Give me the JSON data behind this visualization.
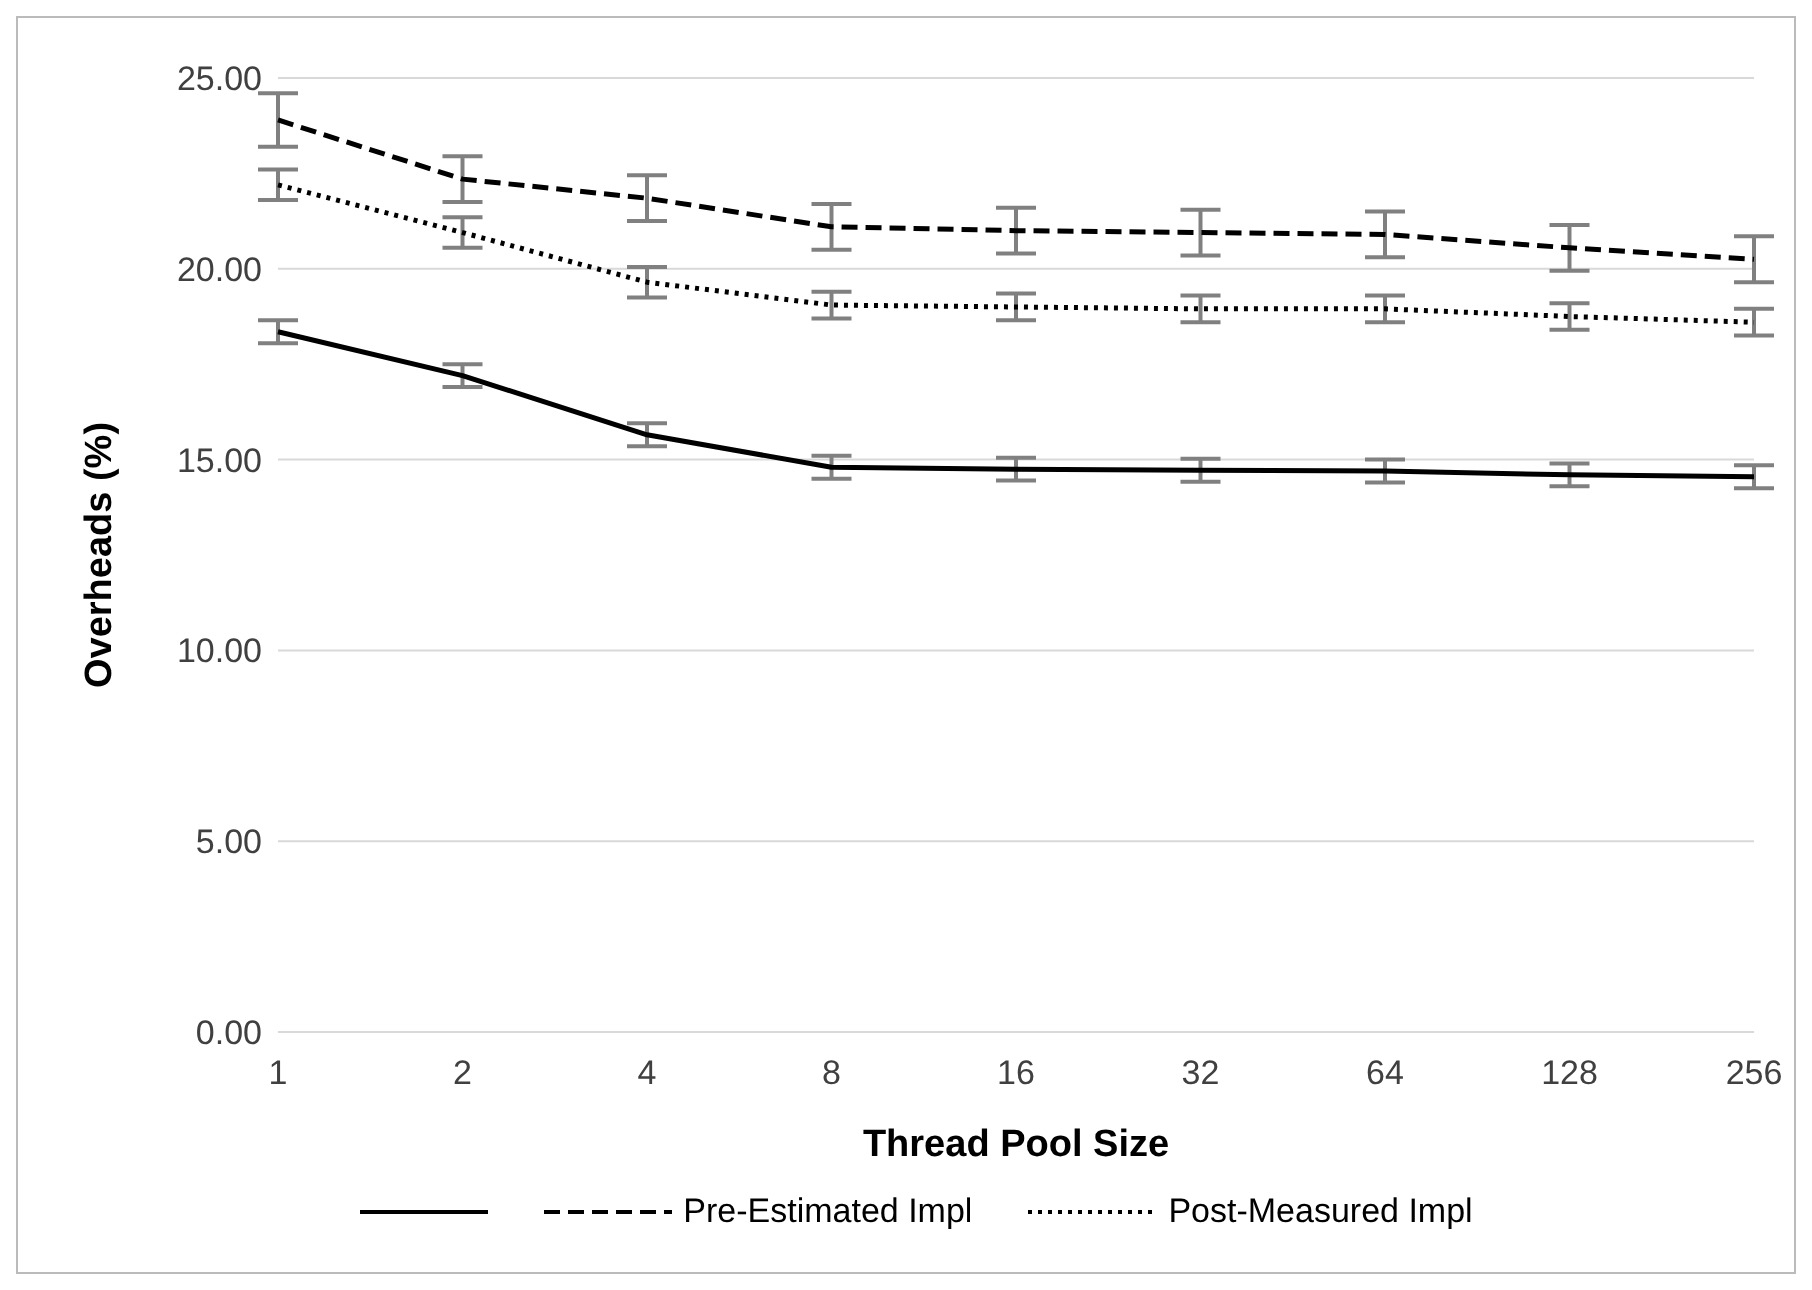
{
  "chart_data": {
    "type": "line",
    "xlabel": "Thread Pool Size",
    "ylabel": "Overheads (%)",
    "categories": [
      "1",
      "2",
      "4",
      "8",
      "16",
      "32",
      "64",
      "128",
      "256"
    ],
    "ylim": [
      0,
      25
    ],
    "yticks": [
      {
        "value": 0,
        "label": "0.00"
      },
      {
        "value": 5,
        "label": "5.00"
      },
      {
        "value": 10,
        "label": "10.00"
      },
      {
        "value": 15,
        "label": "15.00"
      },
      {
        "value": 20,
        "label": "20.00"
      },
      {
        "value": 25,
        "label": "25.00"
      }
    ],
    "grid": "y",
    "legend": "bottom",
    "marker": "none",
    "series": [
      {
        "color": "#000000",
        "line_style": "solid",
        "values": [
          18.35,
          17.2,
          15.65,
          14.8,
          14.75,
          14.72,
          14.7,
          14.6,
          14.55
        ],
        "errors": [
          0.3,
          0.3,
          0.3,
          0.3,
          0.3,
          0.3,
          0.3,
          0.3,
          0.3
        ]
      },
      {
        "name": "Pre-Estimated Impl",
        "color": "#000000",
        "line_style": "dashed",
        "values": [
          23.9,
          22.35,
          21.85,
          21.1,
          21.0,
          20.95,
          20.9,
          20.55,
          20.25
        ],
        "errors": [
          0.7,
          0.6,
          0.6,
          0.6,
          0.6,
          0.6,
          0.6,
          0.6,
          0.6
        ]
      },
      {
        "name": "Post-Measured Impl",
        "color": "#000000",
        "line_style": "dotted",
        "values": [
          22.2,
          20.95,
          19.65,
          19.05,
          19.0,
          18.95,
          18.95,
          18.75,
          18.6
        ],
        "errors": [
          0.4,
          0.4,
          0.4,
          0.35,
          0.35,
          0.35,
          0.35,
          0.35,
          0.35
        ]
      }
    ]
  }
}
